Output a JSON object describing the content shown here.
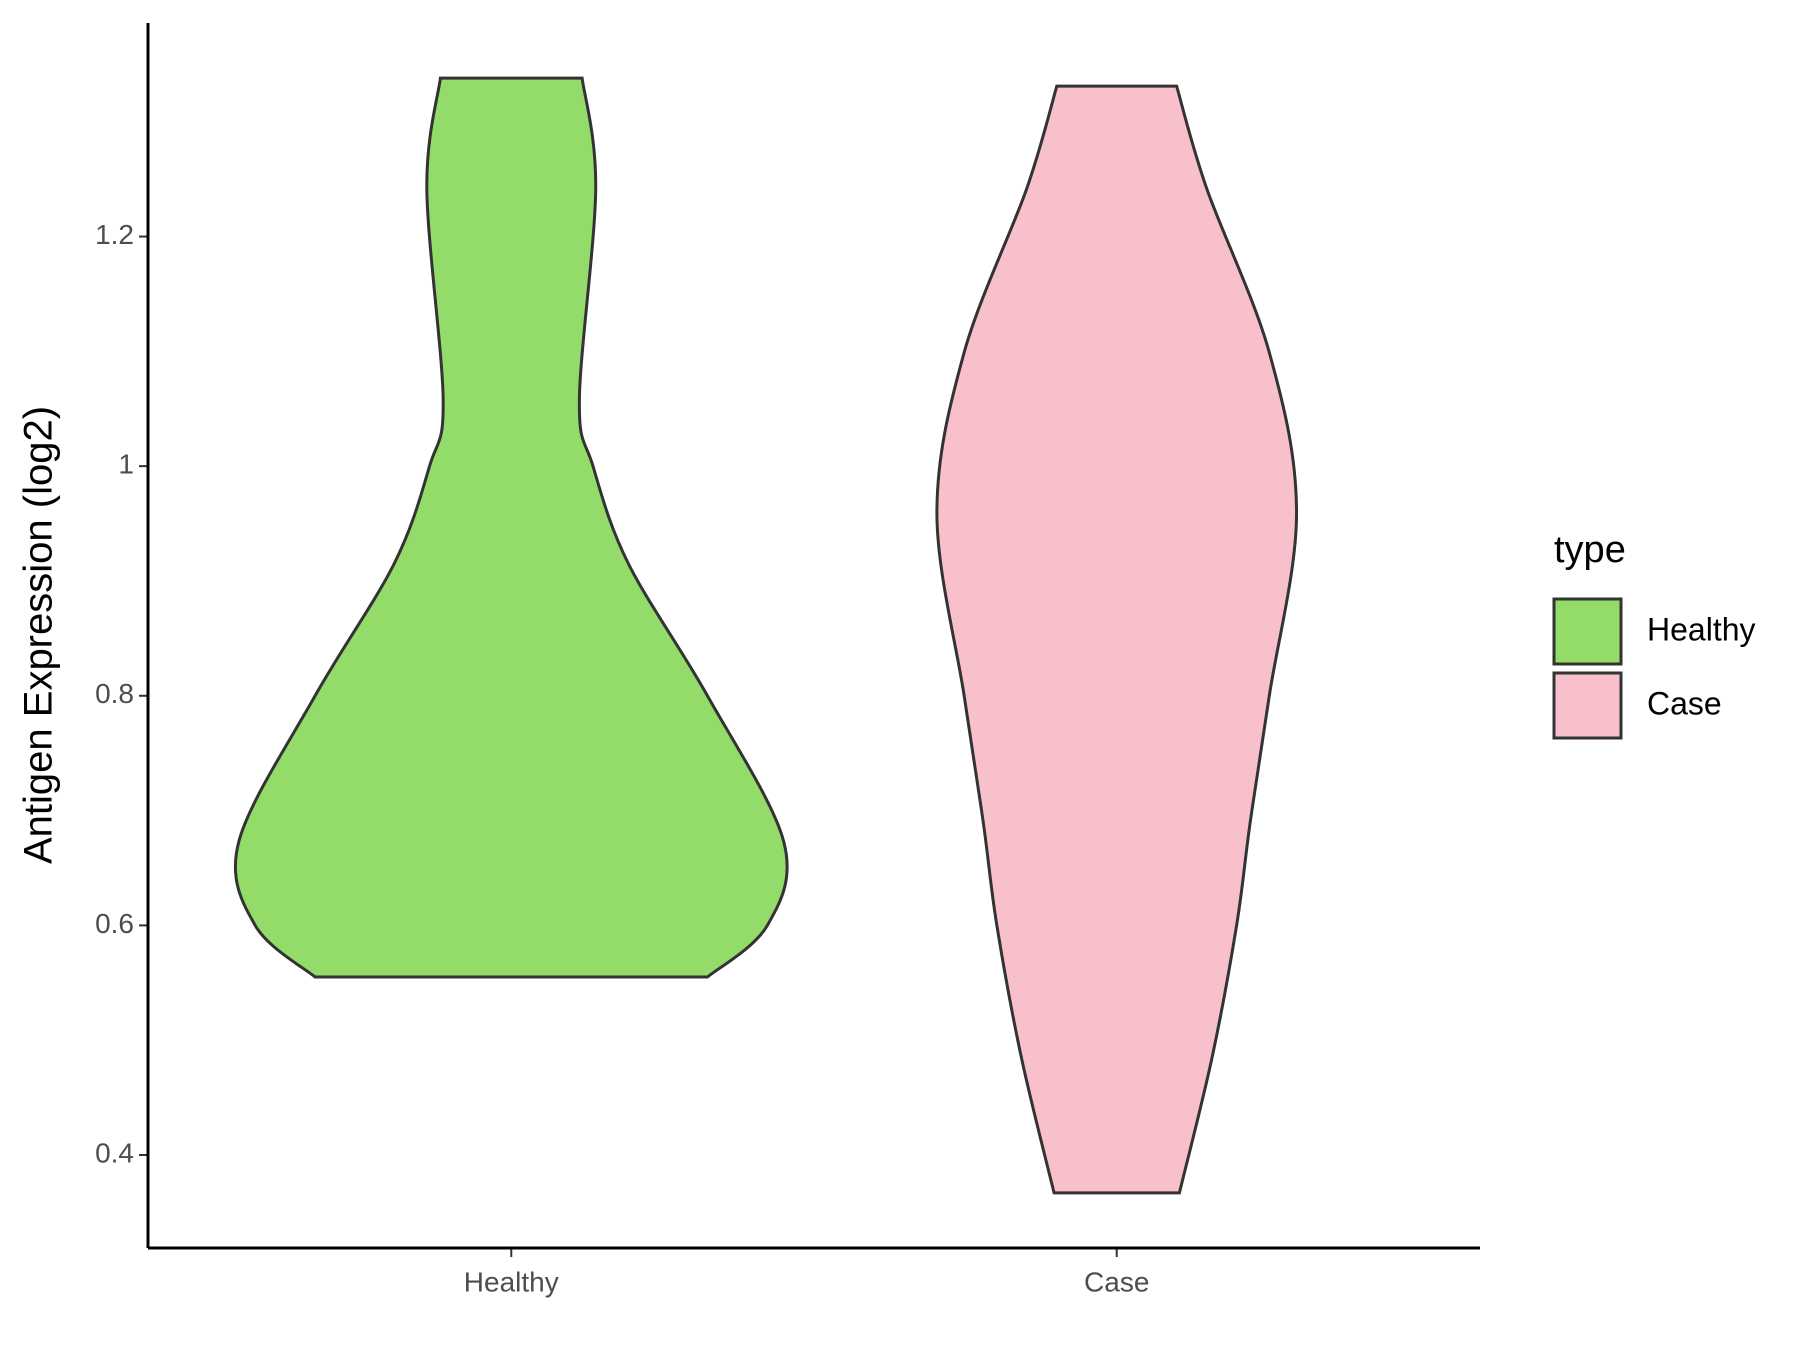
{
  "chart_data": {
    "type": "violin",
    "y_label": "Antigen Expression (log2)",
    "categories": [
      "Healthy",
      "Case"
    ],
    "ylim": [
      0.319,
      1.386
    ],
    "yticks": [
      0.4,
      0.6,
      0.8,
      1.0,
      1.2
    ],
    "legend_title": "type",
    "legend": "right",
    "series": [
      {
        "name": "Healthy",
        "color": "#93DC6A",
        "y": [
          1.338,
          1.242,
          1.058,
          1.0,
          0.915,
          0.8,
          0.673,
          0.6,
          0.555
        ],
        "width": [
          0.26,
          0.31,
          0.25,
          0.3,
          0.43,
          0.72,
          1.0,
          0.94,
          0.72
        ]
      },
      {
        "name": "Case",
        "color": "#F7C0CB",
        "y": [
          1.331,
          1.242,
          1.099,
          0.959,
          0.8,
          0.69,
          0.6,
          0.485,
          0.367
        ],
        "width": [
          0.22,
          0.33,
          0.56,
          0.66,
          0.56,
          0.49,
          0.44,
          0.35,
          0.23
        ]
      }
    ]
  }
}
